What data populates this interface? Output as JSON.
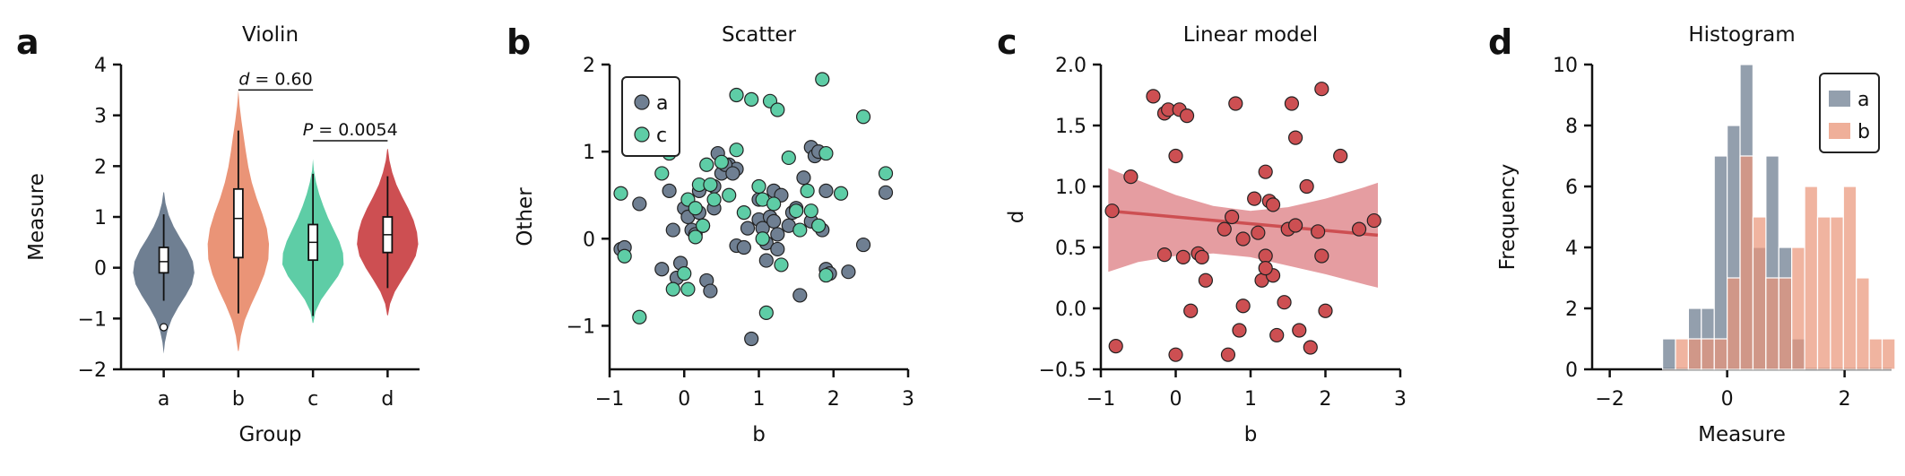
{
  "colors": {
    "a": "#6f7f92",
    "b": "#ea9477",
    "c": "#5ecda6",
    "d": "#cd4f52",
    "violin_stroke": "#ffffff",
    "scatter_stroke": "#222222",
    "ci_fill": "#d7696e"
  },
  "chart_data": [
    {
      "panel": "a",
      "type": "violin",
      "title": "Violin",
      "xlabel": "Group",
      "ylabel": "Measure",
      "categories": [
        "a",
        "b",
        "c",
        "d"
      ],
      "ylim": [
        -2,
        4
      ],
      "yticks": [
        "−2",
        "−1",
        "0",
        "1",
        "2",
        "3",
        "4"
      ],
      "violins": [
        {
          "name": "a",
          "kde_range": [
            -1.7,
            1.5
          ],
          "kde": [
            0.02,
            0.06,
            0.14,
            0.28,
            0.48,
            0.72,
            0.92,
            1.0,
            0.95,
            0.78,
            0.55,
            0.34,
            0.18,
            0.08,
            0.03
          ],
          "q1": -0.1,
          "median": 0.12,
          "q3": 0.4,
          "whisker": [
            -0.65,
            1.05
          ],
          "outliers": [
            -1.17
          ]
        },
        {
          "name": "b",
          "kde_range": [
            -1.65,
            3.5
          ],
          "kde": [
            0.03,
            0.1,
            0.22,
            0.42,
            0.65,
            0.85,
            0.98,
            1.0,
            0.93,
            0.78,
            0.6,
            0.45,
            0.34,
            0.26,
            0.19,
            0.12,
            0.06,
            0.02
          ],
          "q1": 0.2,
          "median": 0.97,
          "q3": 1.55,
          "whisker": [
            -0.9,
            2.7
          ],
          "outliers": []
        },
        {
          "name": "c",
          "kde_range": [
            -1.1,
            2.15
          ],
          "kde": [
            0.03,
            0.1,
            0.28,
            0.55,
            0.82,
            1.0,
            0.98,
            0.86,
            0.68,
            0.5,
            0.35,
            0.22,
            0.12,
            0.05,
            0.02
          ],
          "q1": 0.15,
          "median": 0.5,
          "q3": 0.85,
          "whisker": [
            -0.95,
            1.85
          ],
          "outliers": []
        },
        {
          "name": "d",
          "kde_range": [
            -0.95,
            2.35
          ],
          "kde": [
            0.03,
            0.1,
            0.25,
            0.48,
            0.72,
            0.92,
            1.0,
            0.96,
            0.85,
            0.68,
            0.48,
            0.3,
            0.17,
            0.08,
            0.03
          ],
          "q1": 0.3,
          "median": 0.65,
          "q3": 1.0,
          "whisker": [
            -0.4,
            1.8
          ],
          "outliers": []
        }
      ],
      "annotations": [
        {
          "label": "d = 0.60",
          "italic_prefix": "d",
          "rest": " = 0.60",
          "from": "b",
          "to": "c",
          "y": 3.5
        },
        {
          "label": "P = 0.0054",
          "italic_prefix": "P",
          "rest": " = 0.0054",
          "from": "c",
          "to": "d",
          "y": 2.5
        }
      ]
    },
    {
      "panel": "b",
      "type": "scatter",
      "title": "Scatter",
      "xlabel": "b",
      "ylabel": "Other",
      "xlim": [
        -1,
        3
      ],
      "ylim": [
        -1.5,
        2
      ],
      "xticks": [
        "−1",
        "0",
        "1",
        "2",
        "3"
      ],
      "yticks": [
        "−1",
        "0",
        "1",
        "2"
      ],
      "legend": "top-left",
      "series": [
        {
          "name": "a",
          "color_key": "a",
          "points": [
            [
              -0.85,
              -0.12
            ],
            [
              -0.8,
              -0.1
            ],
            [
              -0.6,
              0.4
            ],
            [
              -0.3,
              -0.35
            ],
            [
              -0.2,
              0.55
            ],
            [
              -0.15,
              0.1
            ],
            [
              -0.1,
              -0.45
            ],
            [
              0.0,
              0.35
            ],
            [
              0.05,
              0.25
            ],
            [
              0.1,
              0.1
            ],
            [
              0.15,
              0.05
            ],
            [
              0.2,
              0.55
            ],
            [
              0.2,
              0.3
            ],
            [
              0.3,
              -0.48
            ],
            [
              0.35,
              -0.6
            ],
            [
              0.4,
              0.35
            ],
            [
              0.4,
              0.6
            ],
            [
              0.45,
              0.98
            ],
            [
              0.5,
              0.75
            ],
            [
              0.6,
              0.85
            ],
            [
              0.7,
              0.8
            ],
            [
              0.7,
              -0.08
            ],
            [
              0.8,
              -0.1
            ],
            [
              0.85,
              0.12
            ],
            [
              0.9,
              -1.15
            ],
            [
              1.0,
              0.22
            ],
            [
              1.05,
              0.12
            ],
            [
              1.1,
              -0.25
            ],
            [
              1.1,
              -0.05
            ],
            [
              1.15,
              0.25
            ],
            [
              1.2,
              0.55
            ],
            [
              1.2,
              0.2
            ],
            [
              1.25,
              0.05
            ],
            [
              1.3,
              0.5
            ],
            [
              1.4,
              0.15
            ],
            [
              1.45,
              0.3
            ],
            [
              1.5,
              0.35
            ],
            [
              1.55,
              -0.65
            ],
            [
              1.6,
              0.7
            ],
            [
              1.7,
              0.2
            ],
            [
              1.7,
              1.05
            ],
            [
              1.75,
              0.95
            ],
            [
              1.8,
              1.0
            ],
            [
              1.85,
              0.1
            ],
            [
              1.9,
              0.55
            ],
            [
              1.9,
              -0.35
            ],
            [
              1.95,
              -0.4
            ],
            [
              2.2,
              -0.38
            ],
            [
              2.4,
              -0.07
            ],
            [
              2.7,
              0.53
            ],
            [
              -0.05,
              -0.28
            ],
            [
              0.55,
              0.85
            ],
            [
              0.65,
              0.75
            ],
            [
              1.0,
              0.45
            ],
            [
              1.25,
              -0.12
            ],
            [
              0.25,
              0.15
            ]
          ]
        },
        {
          "name": "c",
          "color_key": "c",
          "points": [
            [
              -0.85,
              0.52
            ],
            [
              -0.8,
              -0.2
            ],
            [
              -0.6,
              -0.9
            ],
            [
              -0.3,
              0.75
            ],
            [
              -0.2,
              0.98
            ],
            [
              -0.15,
              -0.58
            ],
            [
              0.0,
              -0.4
            ],
            [
              0.05,
              -0.58
            ],
            [
              0.05,
              0.45
            ],
            [
              0.15,
              0.35
            ],
            [
              0.2,
              0.62
            ],
            [
              0.25,
              0.15
            ],
            [
              0.3,
              0.85
            ],
            [
              0.35,
              0.62
            ],
            [
              0.4,
              0.45
            ],
            [
              0.5,
              0.88
            ],
            [
              0.6,
              0.5
            ],
            [
              0.7,
              1.65
            ],
            [
              0.7,
              1.02
            ],
            [
              0.8,
              0.3
            ],
            [
              0.9,
              1.6
            ],
            [
              1.0,
              0.6
            ],
            [
              1.05,
              0.45
            ],
            [
              1.1,
              -0.85
            ],
            [
              1.15,
              1.58
            ],
            [
              1.2,
              0.4
            ],
            [
              1.25,
              1.48
            ],
            [
              1.3,
              -0.3
            ],
            [
              1.4,
              0.93
            ],
            [
              1.5,
              0.32
            ],
            [
              1.55,
              0.1
            ],
            [
              1.65,
              0.55
            ],
            [
              1.7,
              0.32
            ],
            [
              1.8,
              0.15
            ],
            [
              1.85,
              1.83
            ],
            [
              1.9,
              0.98
            ],
            [
              1.9,
              -0.42
            ],
            [
              2.1,
              0.52
            ],
            [
              2.4,
              1.4
            ],
            [
              2.7,
              0.75
            ],
            [
              1.05,
              0.0
            ],
            [
              0.15,
              0.02
            ]
          ]
        }
      ]
    },
    {
      "panel": "c",
      "type": "scatter",
      "title": "Linear model",
      "xlabel": "b",
      "ylabel": "d",
      "xlim": [
        -1,
        3
      ],
      "ylim": [
        -0.5,
        2.0
      ],
      "xticks": [
        "−1",
        "0",
        "1",
        "2",
        "3"
      ],
      "yticks": [
        "−0.5",
        "0.0",
        "0.5",
        "1.0",
        "1.5",
        "2.0"
      ],
      "fit": {
        "x": [
          -0.9,
          2.7
        ],
        "y": [
          0.8,
          0.6
        ]
      },
      "ci": {
        "x": [
          -0.9,
          -0.5,
          0.0,
          0.5,
          1.0,
          1.5,
          2.0,
          2.5,
          2.7
        ],
        "upper": [
          1.15,
          1.05,
          0.93,
          0.84,
          0.8,
          0.83,
          0.9,
          0.99,
          1.03
        ],
        "lower": [
          0.3,
          0.38,
          0.43,
          0.45,
          0.42,
          0.35,
          0.28,
          0.2,
          0.17
        ]
      },
      "series": [
        {
          "name": "",
          "color_key": "d",
          "points": [
            [
              -0.85,
              0.8
            ],
            [
              -0.8,
              -0.31
            ],
            [
              -0.6,
              1.08
            ],
            [
              -0.3,
              1.74
            ],
            [
              -0.15,
              1.6
            ],
            [
              -0.1,
              1.63
            ],
            [
              -0.15,
              0.44
            ],
            [
              0.0,
              1.25
            ],
            [
              0.05,
              1.63
            ],
            [
              0.0,
              -0.38
            ],
            [
              0.1,
              0.42
            ],
            [
              0.15,
              1.58
            ],
            [
              0.2,
              -0.02
            ],
            [
              0.3,
              0.45
            ],
            [
              0.35,
              0.42
            ],
            [
              0.4,
              0.23
            ],
            [
              0.65,
              0.65
            ],
            [
              0.7,
              -0.38
            ],
            [
              0.75,
              0.75
            ],
            [
              0.8,
              1.68
            ],
            [
              0.9,
              0.57
            ],
            [
              0.9,
              0.02
            ],
            [
              0.85,
              -0.18
            ],
            [
              1.05,
              0.9
            ],
            [
              1.1,
              0.62
            ],
            [
              1.15,
              0.23
            ],
            [
              1.2,
              1.12
            ],
            [
              1.2,
              0.43
            ],
            [
              1.25,
              0.88
            ],
            [
              1.3,
              0.85
            ],
            [
              1.3,
              0.27
            ],
            [
              1.35,
              -0.22
            ],
            [
              1.45,
              0.05
            ],
            [
              1.5,
              0.65
            ],
            [
              1.55,
              1.68
            ],
            [
              1.6,
              1.4
            ],
            [
              1.6,
              0.68
            ],
            [
              1.65,
              -0.18
            ],
            [
              1.75,
              1.0
            ],
            [
              1.8,
              -0.32
            ],
            [
              1.9,
              0.63
            ],
            [
              1.95,
              1.8
            ],
            [
              1.95,
              0.43
            ],
            [
              2.0,
              -0.02
            ],
            [
              2.2,
              1.25
            ],
            [
              2.45,
              0.65
            ],
            [
              2.65,
              0.72
            ],
            [
              1.2,
              0.33
            ]
          ]
        }
      ]
    },
    {
      "panel": "d",
      "type": "histogram",
      "title": "Histogram",
      "xlabel": "Measure",
      "ylabel": "Frequency",
      "xlim": [
        -2.3,
        2.8
      ],
      "ylim": [
        0,
        10
      ],
      "xticks": [
        "−2",
        "0",
        "2"
      ],
      "yticks": [
        "0",
        "2",
        "4",
        "6",
        "8",
        "10"
      ],
      "legend": "top-right",
      "bin_edges": [
        -1.1,
        -0.88,
        -0.66,
        -0.44,
        -0.22,
        0.0,
        0.22,
        0.44,
        0.66,
        0.88,
        1.1,
        1.32,
        1.54,
        1.76,
        1.98,
        2.2,
        2.42,
        2.64
      ],
      "series": [
        {
          "name": "a",
          "color_key": "a",
          "counts": [
            1,
            0,
            2,
            2,
            7,
            8,
            10,
            4,
            7,
            4,
            1,
            0,
            0,
            0,
            0,
            0,
            0
          ]
        },
        {
          "name": "b",
          "color_key": "b",
          "counts": [
            0,
            1,
            1,
            1,
            1,
            3,
            7,
            5,
            3,
            3,
            4,
            6,
            5,
            5,
            6,
            3,
            1,
            1
          ]
        }
      ]
    }
  ],
  "hist_b_edges": [
    -1.1,
    -0.88,
    -0.66,
    -0.44,
    -0.22,
    0.0,
    0.22,
    0.44,
    0.66,
    0.88,
    1.1,
    1.32,
    1.54,
    1.76,
    1.98,
    2.2,
    2.42,
    2.64,
    2.86
  ]
}
